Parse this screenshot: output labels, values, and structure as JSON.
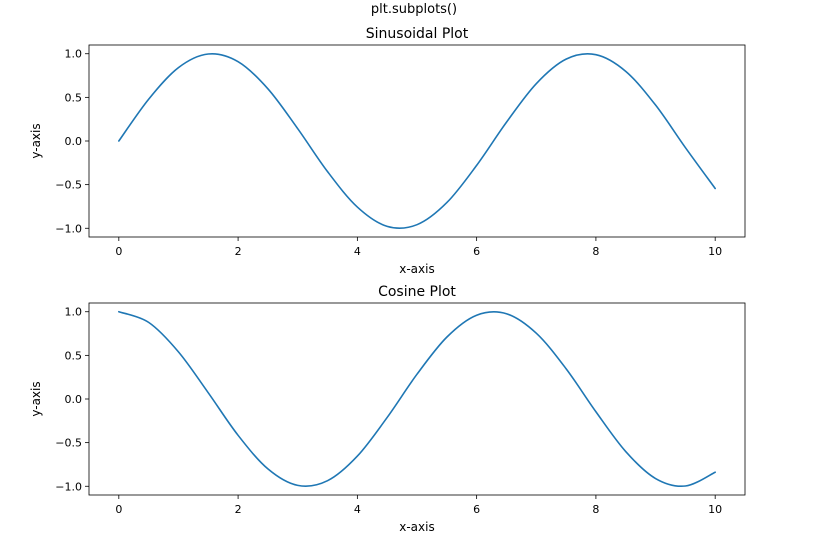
{
  "figure": {
    "suptitle": "plt.subplots()"
  },
  "chart_data": [
    {
      "type": "line",
      "title": "Sinusoidal Plot",
      "xlabel": "x-axis",
      "ylabel": "y-axis",
      "xlim": [
        -0.5,
        10.5
      ],
      "ylim": [
        -1.1,
        1.1
      ],
      "xticks": [
        0,
        2,
        4,
        6,
        8,
        10
      ],
      "xtick_labels": [
        "0",
        "2",
        "4",
        "6",
        "8",
        "10"
      ],
      "yticks": [
        -1.0,
        -0.5,
        0.0,
        0.5,
        1.0
      ],
      "ytick_labels": [
        "−1.0",
        "−0.5",
        "0.0",
        "0.5",
        "1.0"
      ],
      "grid": false,
      "color": "#1f77b4",
      "series": [
        {
          "x": [
            0,
            0.5,
            1,
            1.5,
            2,
            2.5,
            3,
            3.5,
            4,
            4.5,
            5,
            5.5,
            6,
            6.5,
            7,
            7.5,
            8,
            8.5,
            9,
            9.5,
            10
          ],
          "y": [
            0.0,
            0.479,
            0.841,
            0.997,
            0.909,
            0.598,
            0.141,
            -0.351,
            -0.757,
            -0.978,
            -0.959,
            -0.706,
            -0.279,
            0.215,
            0.657,
            0.938,
            0.989,
            0.798,
            0.412,
            -0.075,
            -0.544
          ]
        }
      ]
    },
    {
      "type": "line",
      "title": "Cosine Plot",
      "xlabel": "x-axis",
      "ylabel": "y-axis",
      "xlim": [
        -0.5,
        10.5
      ],
      "ylim": [
        -1.1,
        1.1
      ],
      "xticks": [
        0,
        2,
        4,
        6,
        8,
        10
      ],
      "xtick_labels": [
        "0",
        "2",
        "4",
        "6",
        "8",
        "10"
      ],
      "yticks": [
        -1.0,
        -0.5,
        0.0,
        0.5,
        1.0
      ],
      "ytick_labels": [
        "−1.0",
        "−0.5",
        "0.0",
        "0.5",
        "1.0"
      ],
      "grid": false,
      "color": "#1f77b4",
      "series": [
        {
          "x": [
            0,
            0.5,
            1,
            1.5,
            2,
            2.5,
            3,
            3.5,
            4,
            4.5,
            5,
            5.5,
            6,
            6.5,
            7,
            7.5,
            8,
            8.5,
            9,
            9.5,
            10
          ],
          "y": [
            1.0,
            0.878,
            0.54,
            0.071,
            -0.416,
            -0.801,
            -0.99,
            -0.936,
            -0.654,
            -0.211,
            0.284,
            0.709,
            0.96,
            0.977,
            0.754,
            0.347,
            -0.146,
            -0.602,
            -0.911,
            -0.997,
            -0.839
          ]
        }
      ]
    }
  ]
}
